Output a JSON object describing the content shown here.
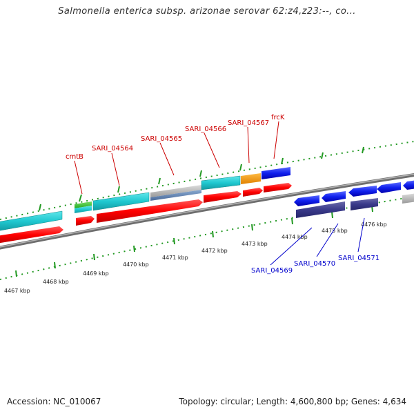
{
  "header": {
    "title": "Salmonella enterica subsp. arizonae serovar 62:z4,z23:--, co..."
  },
  "footer": {
    "accession": "Accession: NC_010067",
    "summary": "Topology: circular; Length: 4,600,800 bp; Genes: 4,634"
  },
  "colors": {
    "forward_cds": "#ff0000",
    "reverse_cds": "#0000ee",
    "reverse_cds_dark": "#3a3a8a",
    "rna_cyan": "#20c8d0",
    "green": "#33bb33",
    "orange": "#ff9900",
    "grey": "#b0b0b0",
    "tick": "#229922",
    "backbone": "#8c8c8c"
  },
  "scale_labels": [
    "4467 kbp",
    "4468 kbp",
    "4469 kbp",
    "4470 kbp",
    "4471 kbp",
    "4472 kbp",
    "4473 kbp",
    "4474 kbp",
    "4475 kbp",
    "4476 kbp"
  ],
  "forward_gene_labels": [
    "cmtB",
    "SARI_04564",
    "SARI_04565",
    "SARI_04566",
    "SARI_04567",
    "frcK"
  ],
  "reverse_gene_labels": [
    "SARI_04569",
    "SARI_04570",
    "SARI_04571"
  ]
}
